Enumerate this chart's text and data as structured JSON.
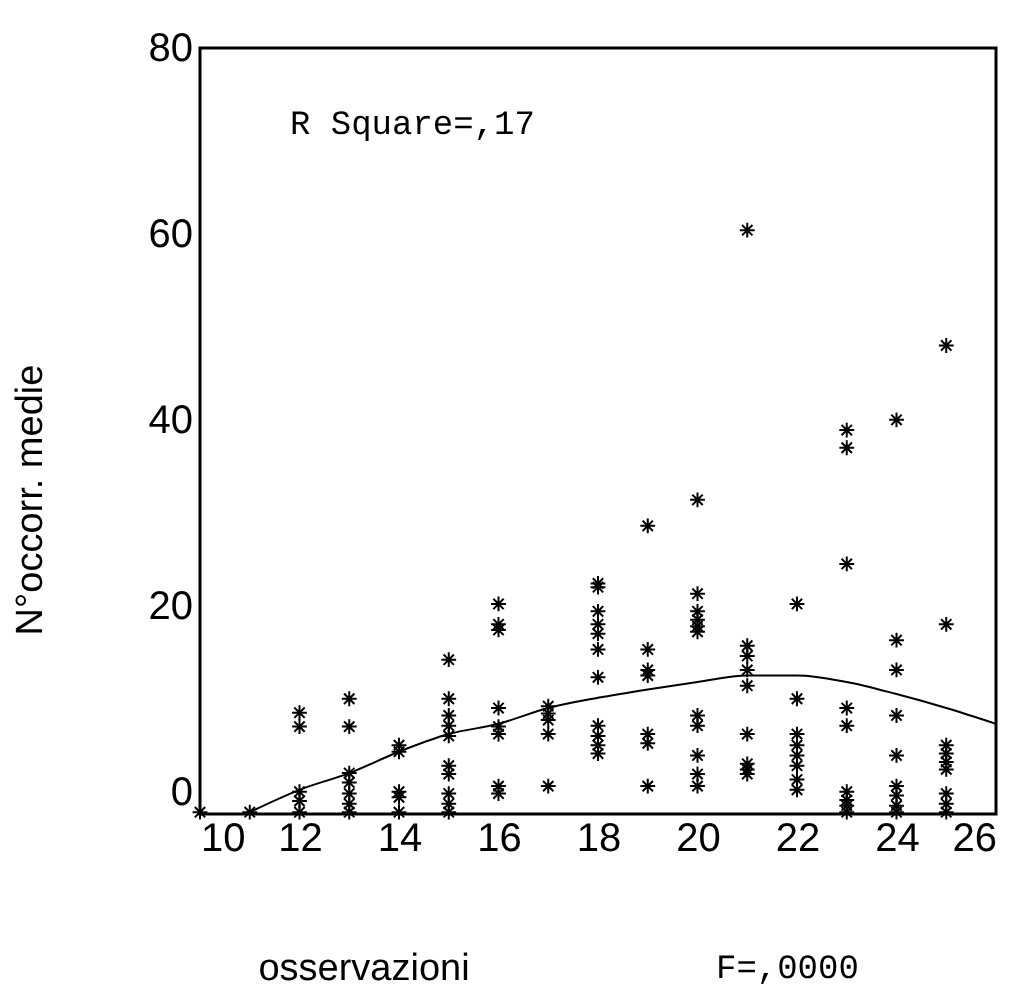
{
  "chart_data": {
    "type": "scatter",
    "xlabel": "osservazioni",
    "ylabel": "N°occorr. medie",
    "annotations": [
      "R Square=,17",
      "F=,0000"
    ],
    "xlim": [
      10,
      26
    ],
    "xticks": [
      10,
      12,
      14,
      16,
      18,
      20,
      22,
      24,
      26
    ],
    "ylim": [
      -2.4,
      80
    ],
    "yticks": [
      0,
      20,
      40,
      60,
      80
    ],
    "grid": false,
    "marker": "cross",
    "series": [
      {
        "color": "#000000",
        "x": [
          10,
          11,
          12,
          12,
          12,
          12,
          12,
          13,
          13,
          13,
          13,
          13,
          13,
          13,
          14,
          14,
          14,
          14,
          14,
          15,
          15,
          15,
          15,
          15,
          15,
          15,
          15,
          15,
          15,
          16,
          16,
          16,
          16,
          16,
          16,
          16,
          16,
          17,
          17,
          17,
          17,
          17,
          18,
          18,
          18,
          18,
          18,
          18,
          18,
          18,
          18,
          18,
          18,
          19,
          19,
          19,
          19,
          19,
          19,
          19,
          20,
          20,
          20,
          20,
          20,
          20,
          20,
          20,
          20,
          20,
          20,
          21,
          21,
          21,
          21,
          21,
          21,
          21,
          21,
          21,
          22,
          22,
          22,
          22,
          22,
          22,
          22,
          22,
          23,
          23,
          23,
          23,
          23,
          23,
          23,
          23,
          23,
          24,
          24,
          24,
          24,
          24,
          24,
          24,
          24,
          24,
          25,
          25,
          25,
          25,
          25,
          25,
          25,
          25,
          25
        ],
        "values": [
          -2.2,
          -2.2,
          8.5,
          7,
          0,
          -1,
          -2.2,
          10,
          7,
          2,
          1,
          -0.2,
          -1.3,
          -2.2,
          5,
          4.3,
          0,
          -0.6,
          -2.2,
          14.2,
          10,
          8.2,
          7.1,
          6,
          2.8,
          1.9,
          -0.2,
          -1.3,
          -2.2,
          20.2,
          18,
          17.4,
          9,
          7,
          6.2,
          0.6,
          -0.2,
          9.2,
          8.4,
          7.7,
          6.2,
          0.6,
          22.4,
          22,
          19.4,
          18,
          17,
          15.3,
          12.3,
          7.1,
          6,
          5,
          4.1,
          28.6,
          15.3,
          13.1,
          12.5,
          6.2,
          5.2,
          0.6,
          31.4,
          21.3,
          19.4,
          18.5,
          17.8,
          17.2,
          8.2,
          7.1,
          3.9,
          1.9,
          0.6,
          60.4,
          15.7,
          14.6,
          13.1,
          11.4,
          6.2,
          3,
          2.4,
          1.9,
          20.2,
          10,
          6.2,
          5,
          3.9,
          2.8,
          1.3,
          0.2,
          38.9,
          37,
          24.5,
          9,
          7.1,
          0,
          -0.9,
          -1.5,
          -2.2,
          40,
          16.3,
          13.1,
          8.2,
          3.9,
          0.6,
          -0.4,
          -1.5,
          -2.2,
          48,
          18,
          5,
          4.1,
          3.2,
          2.4,
          -0.2,
          -1.3,
          -2.2
        ]
      },
      {
        "type": "line",
        "color": "#000000",
        "line_style": "solid",
        "marker": "none",
        "x": [
          11,
          12,
          13,
          14,
          15,
          16,
          17,
          18,
          19,
          20,
          21,
          22,
          23,
          24,
          25,
          26
        ],
        "values": [
          -2.2,
          0.2,
          2,
          4.3,
          6.2,
          7.3,
          9,
          10.1,
          11,
          11.8,
          12.5,
          12.5,
          11.8,
          10.5,
          9,
          7.3
        ]
      }
    ]
  }
}
